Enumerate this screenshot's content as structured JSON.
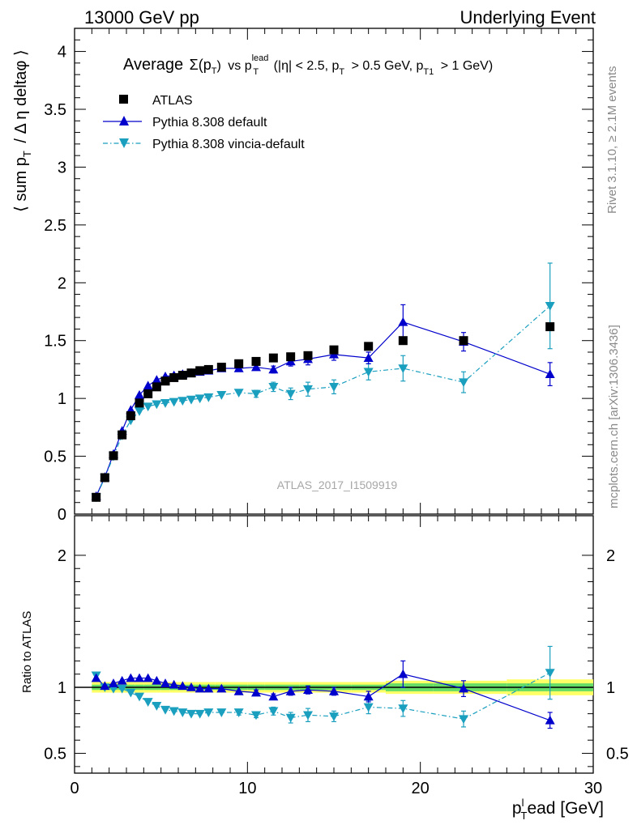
{
  "header": {
    "left": "13000 GeV pp",
    "right": "Underlying Event"
  },
  "side": {
    "rivet": "Rivet 3.1.10, ≥ 2.1M events",
    "mcplots": "mcplots.cern.ch [arXiv:1306.3436]"
  },
  "chart_data": {
    "type": "scatter",
    "title": {
      "lead": "Average",
      "sigma": "Σ(p",
      "sigma_sub": "T",
      "sigma_close": ")",
      "vs": "vs p",
      "lead_sup": "lead",
      "lead_sub": "T",
      "cuts": "(|η| < 2.5, p",
      "cut1_sub": "T",
      "cut1_val": "> 0.5 GeV, p",
      "cut2_sub": "T1",
      "cut2_val": "> 1 GeV)"
    },
    "watermark": "ATLAS_2017_I1509919",
    "xlabel": {
      "main": "p",
      "sub": "T",
      "sup": "l",
      "rest": "ead [GeV]"
    },
    "ylabel": {
      "pre": "⟨ sum p",
      "sub": "T",
      "post": "/ Δ η deltaφ ⟩"
    },
    "ratio_ylabel": "Ratio to ATLAS",
    "xlim": [
      0,
      30
    ],
    "ylim": [
      0,
      4.2
    ],
    "ratio_ylim": [
      0.35,
      2.3
    ],
    "x_ticks": [
      "0",
      "10",
      "20",
      "30"
    ],
    "y_ticks": [
      "0",
      "0.5",
      "1",
      "1.5",
      "2",
      "2.5",
      "3",
      "3.5",
      "4"
    ],
    "ratio_ticks": [
      "0.5",
      "1",
      "2"
    ],
    "legend": [
      "ATLAS",
      "Pythia 8.308 default",
      "Pythia 8.308 vincia-default"
    ],
    "colors": {
      "data": "#000000",
      "default": "#0000cc",
      "vincia": "#1a9fbf",
      "band_inner": "#66dd66",
      "band_outer": "#ffff66"
    },
    "x": [
      1.25,
      1.75,
      2.25,
      2.75,
      3.25,
      3.75,
      4.25,
      4.75,
      5.25,
      5.75,
      6.25,
      6.75,
      7.25,
      7.75,
      8.5,
      9.5,
      10.5,
      11.5,
      12.5,
      13.5,
      15.0,
      17.0,
      19.0,
      22.5,
      27.5
    ],
    "series": [
      {
        "name": "ATLAS",
        "values": [
          0.145,
          0.315,
          0.505,
          0.685,
          0.85,
          0.96,
          1.04,
          1.1,
          1.15,
          1.18,
          1.2,
          1.22,
          1.24,
          1.25,
          1.27,
          1.3,
          1.32,
          1.35,
          1.36,
          1.37,
          1.42,
          1.45,
          1.5,
          1.5,
          1.62
        ]
      },
      {
        "name": "Pythia 8.308 default",
        "values": [
          0.155,
          0.32,
          0.52,
          0.72,
          0.9,
          1.03,
          1.11,
          1.16,
          1.19,
          1.2,
          1.21,
          1.22,
          1.23,
          1.24,
          1.26,
          1.26,
          1.27,
          1.25,
          1.32,
          1.34,
          1.38,
          1.35,
          1.66,
          1.49,
          1.21
        ],
        "errors": [
          0.005,
          0.005,
          0.005,
          0.005,
          0.005,
          0.005,
          0.005,
          0.005,
          0.005,
          0.005,
          0.005,
          0.005,
          0.005,
          0.005,
          0.01,
          0.01,
          0.02,
          0.03,
          0.04,
          0.05,
          0.05,
          0.05,
          0.15,
          0.08,
          0.1
        ],
        "ratio": [
          1.07,
          1.01,
          1.03,
          1.05,
          1.07,
          1.07,
          1.07,
          1.05,
          1.03,
          1.02,
          1.01,
          1.0,
          0.99,
          0.99,
          0.99,
          0.97,
          0.96,
          0.93,
          0.97,
          0.98,
          0.97,
          0.93,
          1.1,
          0.99,
          0.75
        ],
        "ratio_errors": [
          0.01,
          0.01,
          0.01,
          0.01,
          0.01,
          0.01,
          0.01,
          0.01,
          0.01,
          0.01,
          0.01,
          0.01,
          0.01,
          0.01,
          0.01,
          0.01,
          0.02,
          0.02,
          0.03,
          0.03,
          0.03,
          0.04,
          0.1,
          0.06,
          0.06
        ]
      },
      {
        "name": "Pythia 8.308 vincia-default",
        "values": [
          0.145,
          0.315,
          0.5,
          0.68,
          0.81,
          0.89,
          0.93,
          0.95,
          0.96,
          0.97,
          0.98,
          0.99,
          1.0,
          1.01,
          1.03,
          1.05,
          1.04,
          1.1,
          1.04,
          1.08,
          1.1,
          1.23,
          1.26,
          1.14,
          1.8
        ],
        "errors": [
          0.005,
          0.005,
          0.005,
          0.005,
          0.005,
          0.005,
          0.005,
          0.005,
          0.005,
          0.005,
          0.005,
          0.005,
          0.005,
          0.005,
          0.01,
          0.02,
          0.03,
          0.04,
          0.05,
          0.06,
          0.06,
          0.07,
          0.11,
          0.09,
          0.37
        ],
        "ratio": [
          1.09,
          1.0,
          0.99,
          0.99,
          0.96,
          0.93,
          0.89,
          0.86,
          0.83,
          0.82,
          0.81,
          0.8,
          0.8,
          0.81,
          0.81,
          0.81,
          0.79,
          0.82,
          0.77,
          0.79,
          0.78,
          0.85,
          0.84,
          0.76,
          1.11
        ],
        "ratio_errors": [
          0.01,
          0.01,
          0.01,
          0.01,
          0.01,
          0.01,
          0.01,
          0.01,
          0.01,
          0.01,
          0.01,
          0.01,
          0.01,
          0.01,
          0.01,
          0.02,
          0.02,
          0.03,
          0.04,
          0.05,
          0.04,
          0.05,
          0.06,
          0.06,
          0.2
        ]
      }
    ],
    "ratio_band": {
      "inner": [
        0.02,
        0.02,
        0.02,
        0.02,
        0.02,
        0.02,
        0.02,
        0.02,
        0.02,
        0.02,
        0.02,
        0.02,
        0.02,
        0.02,
        0.02,
        0.02,
        0.02,
        0.02,
        0.02,
        0.02,
        0.02,
        0.02,
        0.03,
        0.03,
        0.03
      ],
      "outer": [
        0.04,
        0.04,
        0.04,
        0.04,
        0.04,
        0.04,
        0.04,
        0.04,
        0.04,
        0.04,
        0.04,
        0.04,
        0.04,
        0.04,
        0.04,
        0.04,
        0.04,
        0.04,
        0.04,
        0.04,
        0.04,
        0.04,
        0.05,
        0.05,
        0.06
      ]
    }
  }
}
